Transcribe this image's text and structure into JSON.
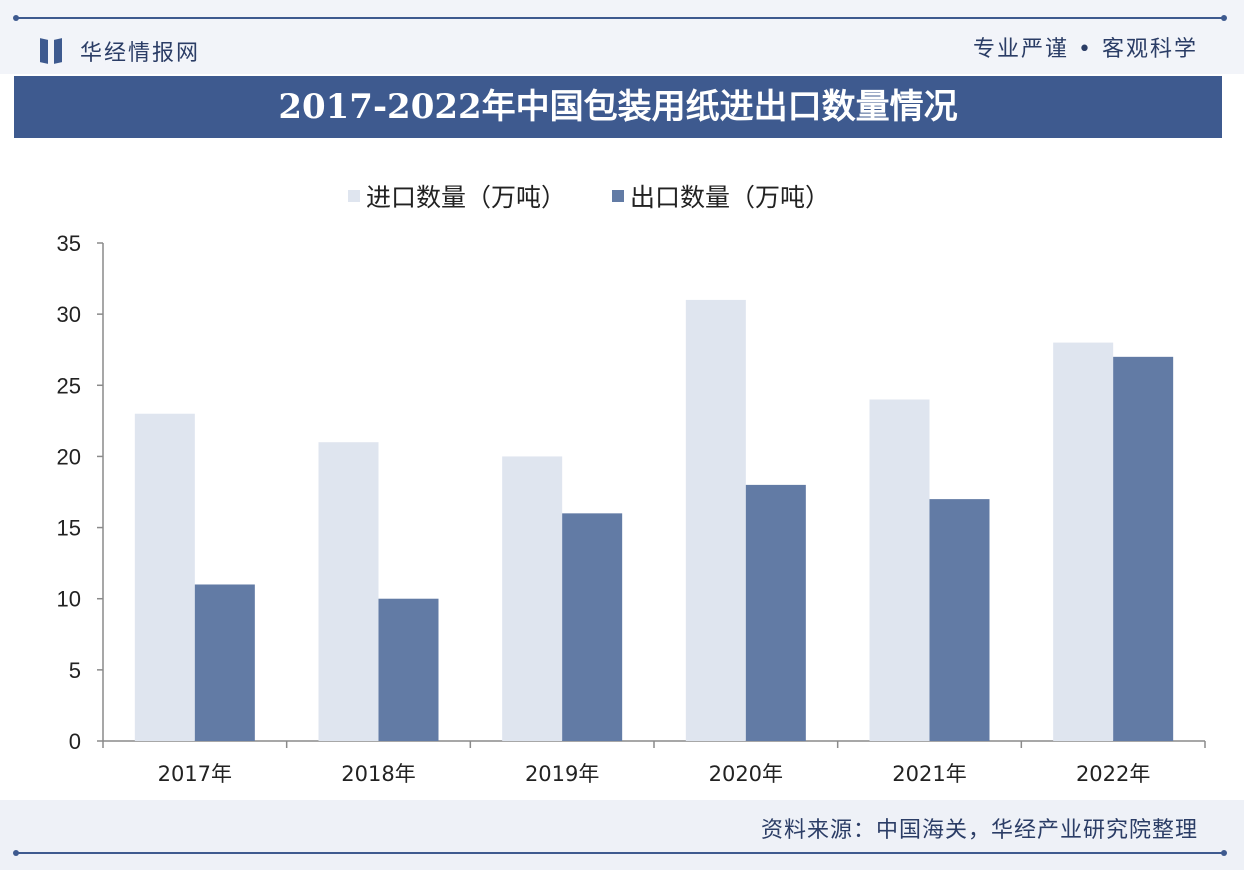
{
  "header": {
    "brand": "华经情报网",
    "slogan": "专业严谨 • 客观科学"
  },
  "footer": {
    "source": "资料来源：中国海关，华经产业研究院整理"
  },
  "colors": {
    "primary": "#3e5a8f",
    "import_bar": "#dfe5ef",
    "export_bar": "#627ba5"
  },
  "chart_data": {
    "type": "bar",
    "title": "2017-2022年中国包装用纸进出口数量情况",
    "categories": [
      "2017年",
      "2018年",
      "2019年",
      "2020年",
      "2021年",
      "2022年"
    ],
    "series": [
      {
        "name": "进口数量（万吨）",
        "values": [
          23,
          21,
          20,
          31,
          24,
          28
        ]
      },
      {
        "name": "出口数量（万吨）",
        "values": [
          11,
          10,
          16,
          18,
          17,
          27
        ]
      }
    ],
    "ylim": [
      0,
      35
    ],
    "yticks": [
      "0",
      "5",
      "10",
      "15",
      "20",
      "25",
      "30",
      "35"
    ],
    "legend_position": "top",
    "grid": false
  }
}
